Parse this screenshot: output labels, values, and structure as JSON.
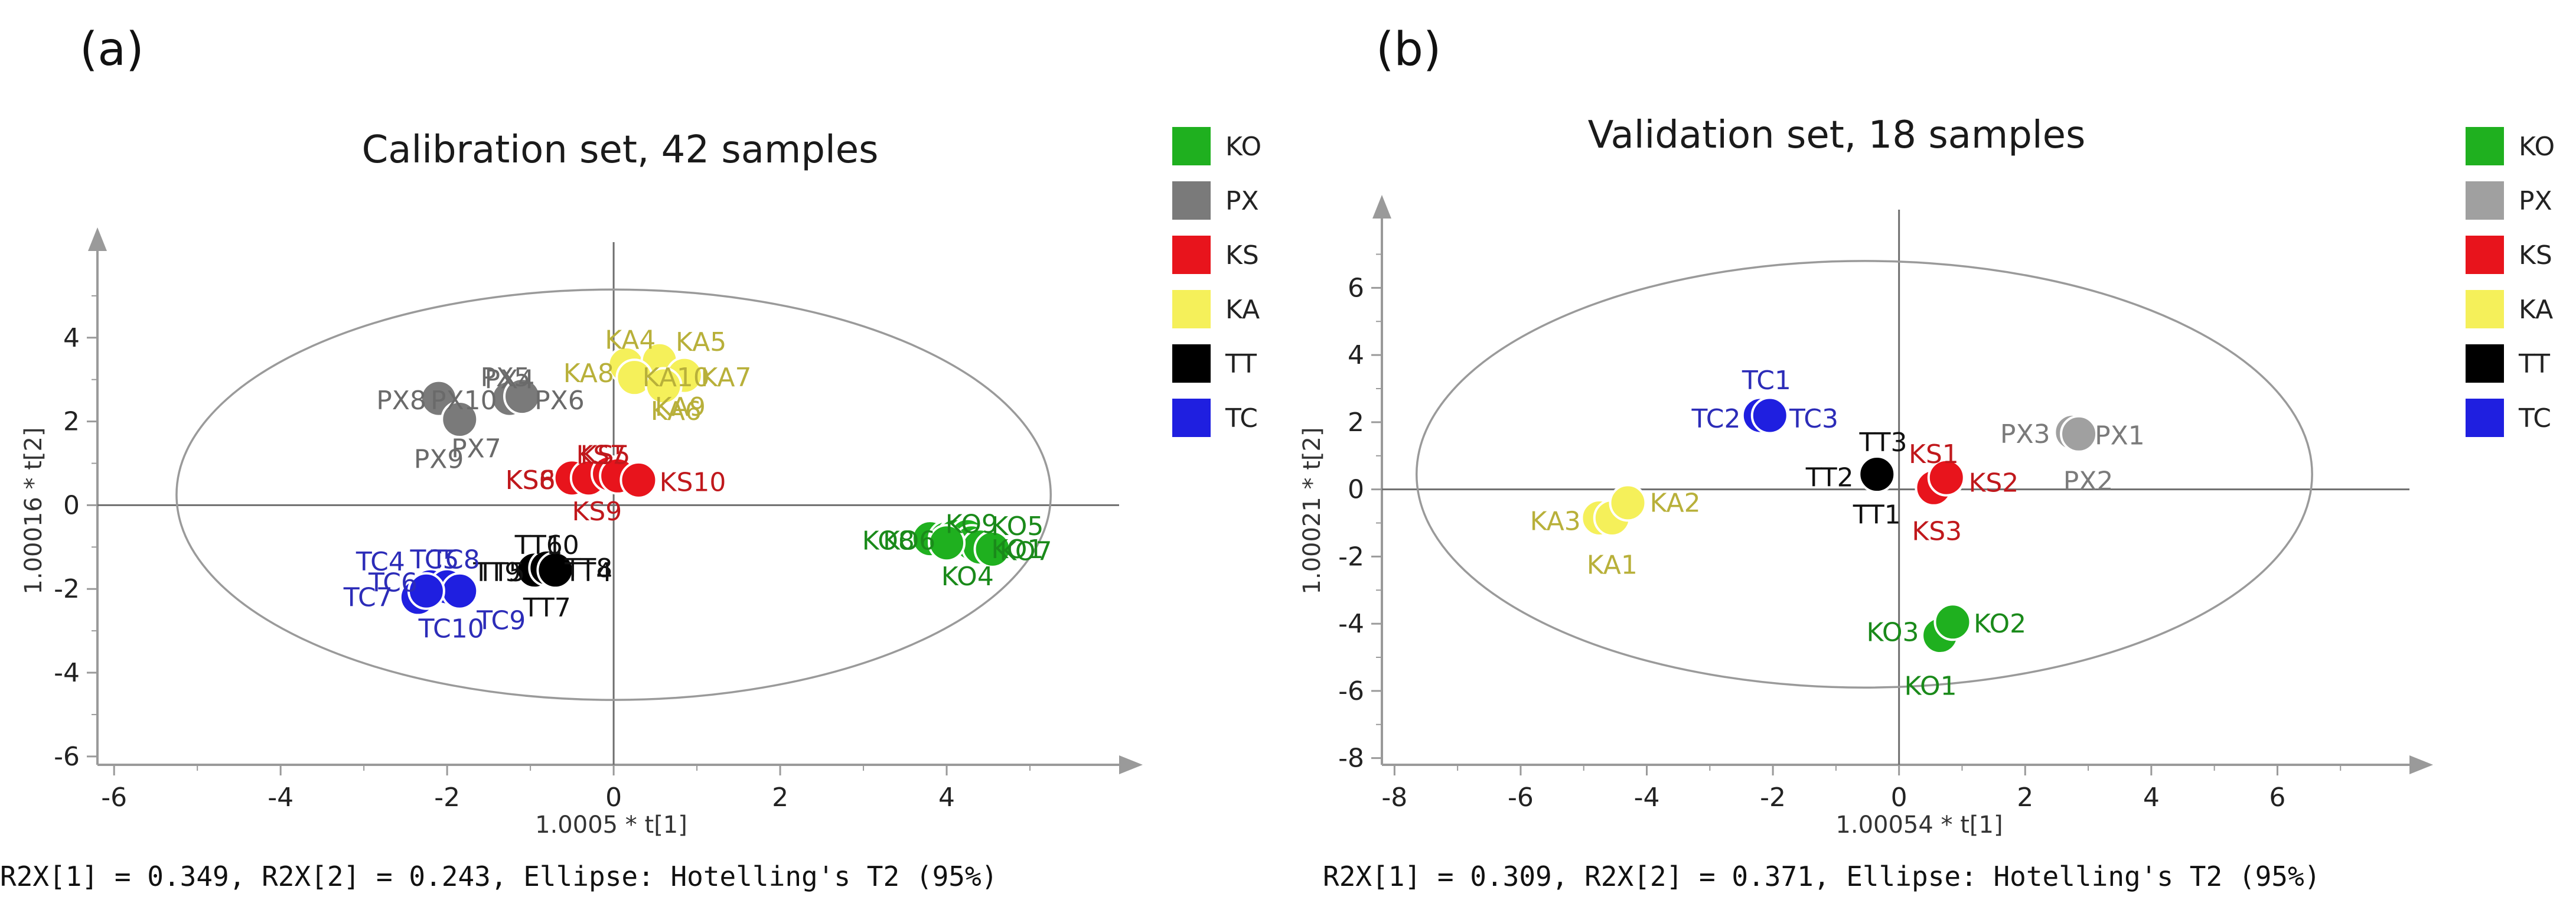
{
  "chart_data": [
    {
      "type": "scatter",
      "panel_label": "(a)",
      "title": "Calibration set, 42 samples",
      "xlabel": "1.0005 * t[1]",
      "ylabel": "1.00016 * t[2]",
      "xlim": [
        -6.2,
        6.0
      ],
      "ylim": [
        -6.2,
        6.0
      ],
      "xticks": [
        -6,
        -4,
        -2,
        0,
        2,
        4
      ],
      "yticks": [
        -6,
        -4,
        -2,
        0,
        2,
        4
      ],
      "ellipse": {
        "cx": 0,
        "cy": 0.25,
        "rx": 5.25,
        "ry": 4.9
      },
      "footnote": "R2X[1] = 0.349, R2X[2] = 0.243, Ellipse: Hotelling's T2 (95%)",
      "legend": [
        {
          "name": "KO",
          "color": "#1fb01f"
        },
        {
          "name": "PX",
          "color": "#7a7a7a"
        },
        {
          "name": "KS",
          "color": "#e8141c"
        },
        {
          "name": "KA",
          "color": "#f5f05a"
        },
        {
          "name": "TT",
          "color": "#000000"
        },
        {
          "name": "TC",
          "color": "#1f1fe0"
        }
      ],
      "series": [
        {
          "name": "KO",
          "color": "#1fb01f",
          "label_color": "#1a8a1a",
          "points": [
            {
              "x": 3.8,
              "y": -0.8
            },
            {
              "x": 4.0,
              "y": -0.8
            },
            {
              "x": 4.1,
              "y": -0.75
            },
            {
              "x": 4.25,
              "y": -0.75
            },
            {
              "x": 4.3,
              "y": -0.9
            },
            {
              "x": 4.4,
              "y": -1.0
            },
            {
              "x": 4.55,
              "y": -1.05
            },
            {
              "x": 4.0,
              "y": -0.9
            }
          ],
          "labels": [
            {
              "text": "KO8",
              "x": 3.3,
              "y": -0.85
            },
            {
              "text": "KO6",
              "x": 3.55,
              "y": -0.85
            },
            {
              "text": "KO9",
              "x": 4.3,
              "y": -0.45
            },
            {
              "text": "KO5",
              "x": 4.85,
              "y": -0.5
            },
            {
              "text": "KO7",
              "x": 4.95,
              "y": -1.1
            },
            {
              "text": "KO1",
              "x": 4.85,
              "y": -1.05
            },
            {
              "text": "KO4",
              "x": 4.25,
              "y": -1.7
            }
          ]
        },
        {
          "name": "PX",
          "color": "#7a7a7a",
          "label_color": "#6a6a6a",
          "points": [
            {
              "x": -2.1,
              "y": 2.55
            },
            {
              "x": -1.85,
              "y": 2.05
            },
            {
              "x": -1.25,
              "y": 2.55
            },
            {
              "x": -1.1,
              "y": 2.6
            }
          ],
          "labels": [
            {
              "text": "PX5",
              "x": -1.3,
              "y": 3.05
            },
            {
              "text": "PX4",
              "x": -1.25,
              "y": 3.0
            },
            {
              "text": "PX8",
              "x": -2.55,
              "y": 2.5
            },
            {
              "text": "PX10",
              "x": -1.8,
              "y": 2.5
            },
            {
              "text": "PX6",
              "x": -0.65,
              "y": 2.5
            },
            {
              "text": "PX7",
              "x": -1.65,
              "y": 1.35
            },
            {
              "text": "PX9",
              "x": -2.1,
              "y": 1.1
            }
          ]
        },
        {
          "name": "KS",
          "color": "#e8141c",
          "label_color": "#c0181c",
          "points": [
            {
              "x": -0.5,
              "y": 0.65
            },
            {
              "x": -0.3,
              "y": 0.65
            },
            {
              "x": -0.05,
              "y": 0.75
            },
            {
              "x": 0.05,
              "y": 0.7
            },
            {
              "x": 0.3,
              "y": 0.6
            }
          ],
          "labels": [
            {
              "text": "KS7",
              "x": -0.15,
              "y": 1.2
            },
            {
              "text": "KS5",
              "x": -0.1,
              "y": 1.2
            },
            {
              "text": "KS6",
              "x": -1.0,
              "y": 0.6
            },
            {
              "text": "KS8",
              "x": -1.0,
              "y": 0.6
            },
            {
              "text": "KS10",
              "x": 0.95,
              "y": 0.55
            },
            {
              "text": "KS9",
              "x": -0.2,
              "y": -0.15
            }
          ]
        },
        {
          "name": "KA",
          "color": "#f5f05a",
          "label_color": "#b8b03a",
          "points": [
            {
              "x": 0.15,
              "y": 3.35
            },
            {
              "x": 0.55,
              "y": 3.45
            },
            {
              "x": 0.25,
              "y": 3.05
            },
            {
              "x": 0.85,
              "y": 3.1
            },
            {
              "x": 0.6,
              "y": 2.85
            }
          ],
          "labels": [
            {
              "text": "KA4",
              "x": 0.2,
              "y": 3.95
            },
            {
              "text": "KA5",
              "x": 1.05,
              "y": 3.9
            },
            {
              "text": "KA8",
              "x": -0.3,
              "y": 3.15
            },
            {
              "text": "KA10",
              "x": 0.75,
              "y": 3.05
            },
            {
              "text": "KA7",
              "x": 1.35,
              "y": 3.05
            },
            {
              "text": "KA9",
              "x": 0.8,
              "y": 2.35
            },
            {
              "text": "KA6",
              "x": 0.75,
              "y": 2.25
            }
          ]
        },
        {
          "name": "TT",
          "color": "#000000",
          "label_color": "#111111",
          "points": [
            {
              "x": -0.95,
              "y": -1.55
            },
            {
              "x": -0.8,
              "y": -1.5
            },
            {
              "x": -0.7,
              "y": -1.55
            }
          ],
          "labels": [
            {
              "text": "TT6",
              "x": -0.9,
              "y": -0.95
            },
            {
              "text": "TT10",
              "x": -0.8,
              "y": -0.95
            },
            {
              "text": "TT9",
              "x": -1.4,
              "y": -1.6
            },
            {
              "text": "TT5",
              "x": -1.35,
              "y": -1.6
            },
            {
              "text": "TT8",
              "x": -0.3,
              "y": -1.5
            },
            {
              "text": "TT4",
              "x": -0.3,
              "y": -1.6
            },
            {
              "text": "TT7",
              "x": -0.8,
              "y": -2.45
            }
          ]
        },
        {
          "name": "TC",
          "color": "#1f1fe0",
          "label_color": "#2c2cb8",
          "points": [
            {
              "x": -2.35,
              "y": -2.2
            },
            {
              "x": -2.2,
              "y": -1.95
            },
            {
              "x": -2.0,
              "y": -1.95
            },
            {
              "x": -1.85,
              "y": -2.05
            },
            {
              "x": -2.25,
              "y": -2.05
            }
          ],
          "labels": [
            {
              "text": "TC4",
              "x": -2.8,
              "y": -1.35
            },
            {
              "text": "TC5",
              "x": -2.15,
              "y": -1.3
            },
            {
              "text": "TC8",
              "x": -1.9,
              "y": -1.3
            },
            {
              "text": "TC6",
              "x": -2.65,
              "y": -1.85
            },
            {
              "text": "TC7",
              "x": -2.95,
              "y": -2.2
            },
            {
              "text": "TC9",
              "x": -1.35,
              "y": -2.75
            },
            {
              "text": "TC10",
              "x": -1.95,
              "y": -2.95
            }
          ]
        }
      ]
    },
    {
      "type": "scatter",
      "panel_label": "(b)",
      "title": "Validation set, 18 samples",
      "xlabel": "1.00054 * t[1]",
      "ylabel": "1.00021 * t[2]",
      "xlim": [
        -8.2,
        8.0
      ],
      "ylim": [
        -8.2,
        7.8
      ],
      "xticks": [
        -8,
        -6,
        -4,
        -2,
        0,
        2,
        4,
        6
      ],
      "yticks": [
        -8,
        -6,
        -4,
        -2,
        0,
        2,
        4,
        6
      ],
      "ellipse": {
        "cx": -0.55,
        "cy": 0.45,
        "rx": 7.1,
        "ry": 6.35
      },
      "footnote": "R2X[1] = 0.309, R2X[2] = 0.371, Ellipse: Hotelling's T2 (95%)",
      "legend": [
        {
          "name": "KO",
          "color": "#1fb01f"
        },
        {
          "name": "PX",
          "color": "#a0a0a0"
        },
        {
          "name": "KS",
          "color": "#e8141c"
        },
        {
          "name": "KA",
          "color": "#f5f05a"
        },
        {
          "name": "TT",
          "color": "#000000"
        },
        {
          "name": "TC",
          "color": "#1f1fe0"
        }
      ],
      "series": [
        {
          "name": "KO",
          "color": "#1fb01f",
          "label_color": "#1a8a1a",
          "points": [
            {
              "x": 0.65,
              "y": -4.35
            },
            {
              "x": 0.85,
              "y": -3.95
            }
          ],
          "labels": [
            {
              "text": "KO3",
              "x": -0.1,
              "y": -4.25
            },
            {
              "text": "KO2",
              "x": 1.6,
              "y": -4.0
            },
            {
              "text": "KO1",
              "x": 0.5,
              "y": -5.85
            }
          ]
        },
        {
          "name": "PX",
          "color": "#a0a0a0",
          "label_color": "#7a7a7a",
          "points": [
            {
              "x": 2.75,
              "y": 1.7
            },
            {
              "x": 2.85,
              "y": 1.65
            }
          ],
          "labels": [
            {
              "text": "PX3",
              "x": 2.0,
              "y": 1.65
            },
            {
              "text": "PX1",
              "x": 3.5,
              "y": 1.6
            },
            {
              "text": "PX2",
              "x": 3.0,
              "y": 0.25
            }
          ]
        },
        {
          "name": "KS",
          "color": "#e8141c",
          "label_color": "#c0181c",
          "points": [
            {
              "x": 0.55,
              "y": 0.05
            },
            {
              "x": 0.75,
              "y": 0.35
            }
          ],
          "labels": [
            {
              "text": "KS1",
              "x": 0.55,
              "y": 1.05
            },
            {
              "text": "KS2",
              "x": 1.5,
              "y": 0.2
            },
            {
              "text": "KS3",
              "x": 0.6,
              "y": -1.25
            }
          ]
        },
        {
          "name": "KA",
          "color": "#f5f05a",
          "label_color": "#b8b03a",
          "points": [
            {
              "x": -4.75,
              "y": -0.85
            },
            {
              "x": -4.55,
              "y": -0.85
            },
            {
              "x": -4.3,
              "y": -0.4
            }
          ],
          "labels": [
            {
              "text": "KA3",
              "x": -5.45,
              "y": -0.95
            },
            {
              "text": "KA2",
              "x": -3.55,
              "y": -0.4
            },
            {
              "text": "KA1",
              "x": -4.55,
              "y": -2.25
            }
          ]
        },
        {
          "name": "TT",
          "color": "#000000",
          "label_color": "#111111",
          "points": [
            {
              "x": -0.35,
              "y": 0.45
            }
          ],
          "labels": [
            {
              "text": "TT3",
              "x": -0.25,
              "y": 1.4
            },
            {
              "text": "TT2",
              "x": -1.1,
              "y": 0.35
            },
            {
              "text": "TT1",
              "x": -0.35,
              "y": -0.75
            }
          ]
        },
        {
          "name": "TC",
          "color": "#1f1fe0",
          "label_color": "#2c2cb8",
          "points": [
            {
              "x": -2.2,
              "y": 2.2
            },
            {
              "x": -2.05,
              "y": 2.2
            }
          ],
          "labels": [
            {
              "text": "TC1",
              "x": -2.1,
              "y": 3.25
            },
            {
              "text": "TC2",
              "x": -2.9,
              "y": 2.1
            },
            {
              "text": "TC3",
              "x": -1.35,
              "y": 2.1
            }
          ]
        }
      ]
    }
  ]
}
